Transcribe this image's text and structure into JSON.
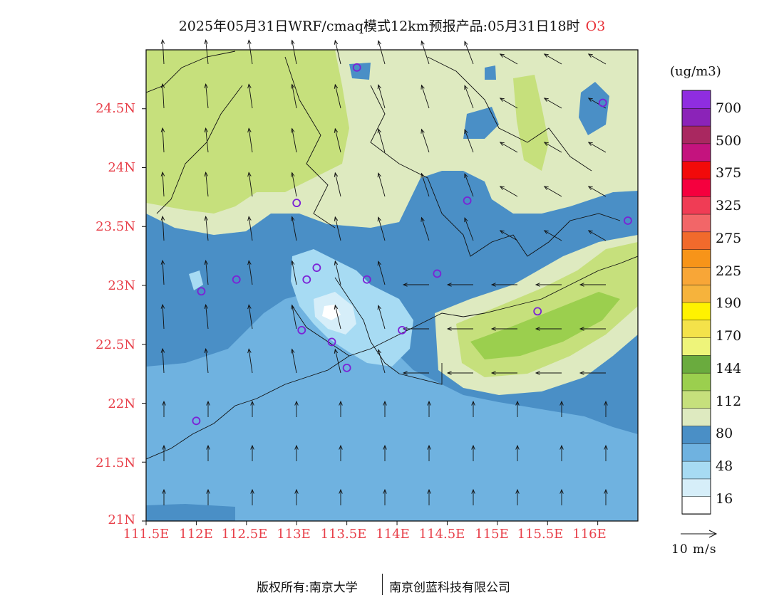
{
  "title": {
    "text": "2025年05月31日WRF/cmaq模式12km预报产品:05月31日18时",
    "variable": "O3"
  },
  "map": {
    "lat_labels": [
      "24.5N",
      "24N",
      "23.5N",
      "23N",
      "22.5N",
      "22N",
      "21.5N",
      "21N"
    ],
    "lon_labels": [
      "111.5E",
      "112E",
      "112.5E",
      "113E",
      "113.5E",
      "114E",
      "114.5E",
      "115E",
      "115.5E",
      "116E"
    ],
    "extent": {
      "lon_min": 111.5,
      "lon_max": 116.4,
      "lat_min": 21.0,
      "lat_max": 25.0
    },
    "stations": [
      {
        "lon": 112.0,
        "lat": 21.85
      },
      {
        "lon": 112.05,
        "lat": 22.95
      },
      {
        "lon": 112.4,
        "lat": 23.05
      },
      {
        "lon": 113.0,
        "lat": 23.7
      },
      {
        "lon": 113.1,
        "lat": 23.05
      },
      {
        "lon": 113.2,
        "lat": 23.15
      },
      {
        "lon": 113.05,
        "lat": 22.62
      },
      {
        "lon": 113.35,
        "lat": 22.52
      },
      {
        "lon": 113.5,
        "lat": 22.3
      },
      {
        "lon": 113.7,
        "lat": 23.05
      },
      {
        "lon": 114.05,
        "lat": 22.62
      },
      {
        "lon": 114.4,
        "lat": 23.1
      },
      {
        "lon": 114.7,
        "lat": 23.72
      },
      {
        "lon": 115.4,
        "lat": 22.78
      },
      {
        "lon": 116.05,
        "lat": 24.55
      },
      {
        "lon": 116.3,
        "lat": 23.55
      },
      {
        "lon": 113.6,
        "lat": 24.85
      }
    ]
  },
  "colorbar": {
    "units": "(ug/m3)",
    "labels": [
      "700",
      "500",
      "375",
      "325",
      "275",
      "225",
      "190",
      "170",
      "144",
      "112",
      "80",
      "48",
      "16"
    ],
    "colors": [
      "#ffffff",
      "#d6eef9",
      "#a7dbf3",
      "#6fb2e0",
      "#4a8fc6",
      "#deeac0",
      "#c6e07c",
      "#9bcf4e",
      "#6aab3e",
      "#eef47a",
      "#f4e24a",
      "#fff200",
      "#f6b33c",
      "#f8a637",
      "#f79419",
      "#f16a2c",
      "#f26668",
      "#f03c55",
      "#f5003e",
      "#f20a0a",
      "#c4137e",
      "#a92860",
      "#8b23b8",
      "#8f2de0"
    ]
  },
  "wind_reference": {
    "label": "10 m/s"
  },
  "footer": {
    "left": "版权所有:南京大学",
    "right": "南京创蓝科技有限公司"
  }
}
